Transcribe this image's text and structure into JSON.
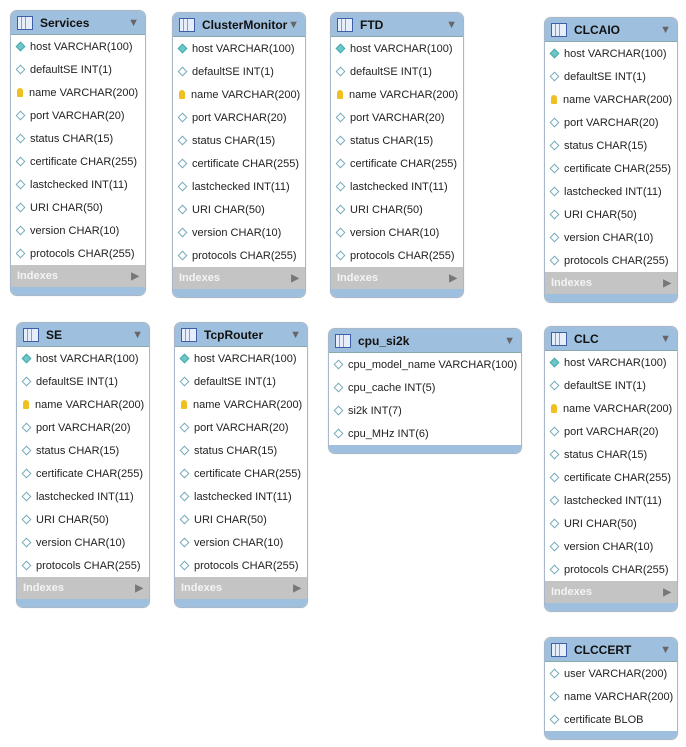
{
  "indexes_label": "Indexes",
  "tables": [
    {
      "name": "Services",
      "cols": [
        [
          "pk",
          "host VARCHAR(100)"
        ],
        [
          "col",
          "defaultSE INT(1)"
        ],
        [
          "key",
          "name VARCHAR(200)"
        ],
        [
          "col",
          "port VARCHAR(20)"
        ],
        [
          "col",
          "status CHAR(15)"
        ],
        [
          "col",
          "certificate CHAR(255)"
        ],
        [
          "col",
          "lastchecked INT(11)"
        ],
        [
          "col",
          "URI CHAR(50)"
        ],
        [
          "col",
          "version CHAR(10)"
        ],
        [
          "col",
          "protocols CHAR(255)"
        ]
      ],
      "indexes": true
    },
    {
      "name": "ClusterMonitor",
      "cols": [
        [
          "pk",
          "host VARCHAR(100)"
        ],
        [
          "col",
          "defaultSE INT(1)"
        ],
        [
          "key",
          "name VARCHAR(200)"
        ],
        [
          "col",
          "port VARCHAR(20)"
        ],
        [
          "col",
          "status CHAR(15)"
        ],
        [
          "col",
          "certificate CHAR(255)"
        ],
        [
          "col",
          "lastchecked INT(11)"
        ],
        [
          "col",
          "URI CHAR(50)"
        ],
        [
          "col",
          "version CHAR(10)"
        ],
        [
          "col",
          "protocols CHAR(255)"
        ]
      ],
      "indexes": true
    },
    {
      "name": "FTD",
      "cols": [
        [
          "pk",
          "host VARCHAR(100)"
        ],
        [
          "col",
          "defaultSE INT(1)"
        ],
        [
          "key",
          "name VARCHAR(200)"
        ],
        [
          "col",
          "port VARCHAR(20)"
        ],
        [
          "col",
          "status CHAR(15)"
        ],
        [
          "col",
          "certificate CHAR(255)"
        ],
        [
          "col",
          "lastchecked INT(11)"
        ],
        [
          "col",
          "URI CHAR(50)"
        ],
        [
          "col",
          "version CHAR(10)"
        ],
        [
          "col",
          "protocols CHAR(255)"
        ]
      ],
      "indexes": true
    },
    {
      "name": "CLCAIO",
      "cols": [
        [
          "pk",
          "host VARCHAR(100)"
        ],
        [
          "col",
          "defaultSE INT(1)"
        ],
        [
          "key",
          "name VARCHAR(200)"
        ],
        [
          "col",
          "port VARCHAR(20)"
        ],
        [
          "col",
          "status CHAR(15)"
        ],
        [
          "col",
          "certificate CHAR(255)"
        ],
        [
          "col",
          "lastchecked INT(11)"
        ],
        [
          "col",
          "URI CHAR(50)"
        ],
        [
          "col",
          "version CHAR(10)"
        ],
        [
          "col",
          "protocols CHAR(255)"
        ]
      ],
      "indexes": true
    },
    {
      "name": "SE",
      "cols": [
        [
          "pk",
          "host VARCHAR(100)"
        ],
        [
          "col",
          "defaultSE INT(1)"
        ],
        [
          "key",
          "name VARCHAR(200)"
        ],
        [
          "col",
          "port VARCHAR(20)"
        ],
        [
          "col",
          "status CHAR(15)"
        ],
        [
          "col",
          "certificate CHAR(255)"
        ],
        [
          "col",
          "lastchecked INT(11)"
        ],
        [
          "col",
          "URI CHAR(50)"
        ],
        [
          "col",
          "version CHAR(10)"
        ],
        [
          "col",
          "protocols CHAR(255)"
        ]
      ],
      "indexes": true
    },
    {
      "name": "TcpRouter",
      "cols": [
        [
          "pk",
          "host VARCHAR(100)"
        ],
        [
          "col",
          "defaultSE INT(1)"
        ],
        [
          "key",
          "name VARCHAR(200)"
        ],
        [
          "col",
          "port VARCHAR(20)"
        ],
        [
          "col",
          "status CHAR(15)"
        ],
        [
          "col",
          "certificate CHAR(255)"
        ],
        [
          "col",
          "lastchecked INT(11)"
        ],
        [
          "col",
          "URI CHAR(50)"
        ],
        [
          "col",
          "version CHAR(10)"
        ],
        [
          "col",
          "protocols CHAR(255)"
        ]
      ],
      "indexes": true
    },
    {
      "name": "cpu_si2k",
      "cols": [
        [
          "col",
          "cpu_model_name VARCHAR(100)"
        ],
        [
          "col",
          "cpu_cache INT(5)"
        ],
        [
          "col",
          "si2k INT(7)"
        ],
        [
          "col",
          "cpu_MHz INT(6)"
        ]
      ],
      "indexes": false
    },
    {
      "name": "CLC",
      "cols": [
        [
          "pk",
          "host VARCHAR(100)"
        ],
        [
          "col",
          "defaultSE INT(1)"
        ],
        [
          "key",
          "name VARCHAR(200)"
        ],
        [
          "col",
          "port VARCHAR(20)"
        ],
        [
          "col",
          "status CHAR(15)"
        ],
        [
          "col",
          "certificate CHAR(255)"
        ],
        [
          "col",
          "lastchecked INT(11)"
        ],
        [
          "col",
          "URI CHAR(50)"
        ],
        [
          "col",
          "version CHAR(10)"
        ],
        [
          "col",
          "protocols CHAR(255)"
        ]
      ],
      "indexes": true
    },
    {
      "name": "CLCCERT",
      "cols": [
        [
          "col",
          "user VARCHAR(200)"
        ],
        [
          "col",
          "name VARCHAR(200)"
        ],
        [
          "col",
          "certificate BLOB"
        ]
      ],
      "indexes": false
    }
  ]
}
